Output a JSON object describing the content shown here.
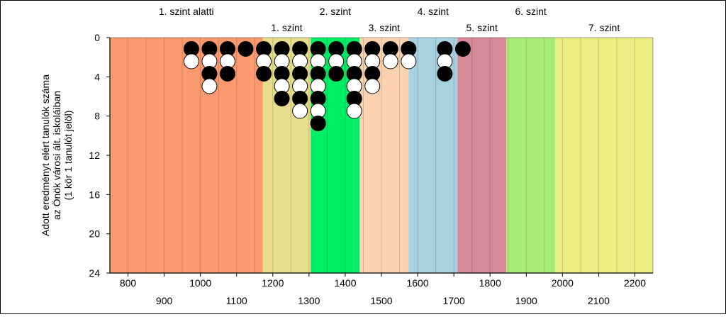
{
  "chart_data": {
    "type": "scatter",
    "ylabel_lines": [
      "Adott eredményt elért tanulók száma",
      "az Önök városi ált. iskoláiban",
      "(1 kör 1 tanulót jelöl)"
    ],
    "xlim": [
      750,
      2250
    ],
    "ylim": [
      24,
      0
    ],
    "y_ticks": [
      0,
      4,
      8,
      12,
      16,
      20,
      24
    ],
    "x_ticks_row1": [
      800,
      1000,
      1200,
      1400,
      1600,
      1800,
      2000,
      2200
    ],
    "x_ticks_row2": [
      900,
      1100,
      1300,
      1500,
      1700,
      1900,
      2100
    ],
    "grid": "vertical every 50",
    "bands": [
      {
        "label": "1. szint alatti",
        "from": 750,
        "to": 1172,
        "color": "#FA9A6E",
        "label_row": "top"
      },
      {
        "label": "1. szint",
        "from": 1172,
        "to": 1305,
        "color": "#E6DE8C",
        "label_row": "bottom"
      },
      {
        "label": "2. szint",
        "from": 1305,
        "to": 1440,
        "color": "#00EE66",
        "label_row": "top"
      },
      {
        "label": "3. szint",
        "from": 1440,
        "to": 1575,
        "color": "#FCD3B0",
        "label_row": "bottom"
      },
      {
        "label": "4. szint",
        "from": 1575,
        "to": 1710,
        "color": "#A8D2E0",
        "label_row": "top"
      },
      {
        "label": "5. szint",
        "from": 1710,
        "to": 1845,
        "color": "#D98A98",
        "label_row": "bottom"
      },
      {
        "label": "6. szint",
        "from": 1845,
        "to": 1980,
        "color": "#A8EC78",
        "label_row": "top"
      },
      {
        "label": "7. szint",
        "from": 1980,
        "to": 2250,
        "color": "#ECEC80",
        "label_row": "bottom"
      }
    ],
    "columns": [
      {
        "x": 975,
        "circles": [
          "black",
          "white"
        ]
      },
      {
        "x": 1025,
        "circles": [
          "black",
          "white",
          "black",
          "white"
        ]
      },
      {
        "x": 1075,
        "circles": [
          "black",
          "white",
          "black"
        ]
      },
      {
        "x": 1125,
        "circles": [
          "black"
        ]
      },
      {
        "x": 1175,
        "circles": [
          "black",
          "white",
          "black"
        ]
      },
      {
        "x": 1225,
        "circles": [
          "black",
          "white",
          "black",
          "white",
          "black"
        ]
      },
      {
        "x": 1275,
        "circles": [
          "black",
          "white",
          "black",
          "white",
          "black",
          "white"
        ]
      },
      {
        "x": 1325,
        "circles": [
          "black",
          "white",
          "black",
          "white",
          "black",
          "white",
          "black"
        ]
      },
      {
        "x": 1375,
        "circles": [
          "black",
          "white",
          "black"
        ]
      },
      {
        "x": 1425,
        "circles": [
          "black",
          "white",
          "black",
          "white",
          "black",
          "white"
        ]
      },
      {
        "x": 1475,
        "circles": [
          "black",
          "white",
          "black",
          "white"
        ]
      },
      {
        "x": 1525,
        "circles": [
          "black",
          "white"
        ]
      },
      {
        "x": 1575,
        "circles": [
          "black",
          "white"
        ]
      },
      {
        "x": 1675,
        "circles": [
          "black",
          "white",
          "black"
        ]
      },
      {
        "x": 1725,
        "circles": [
          "black"
        ]
      }
    ]
  }
}
